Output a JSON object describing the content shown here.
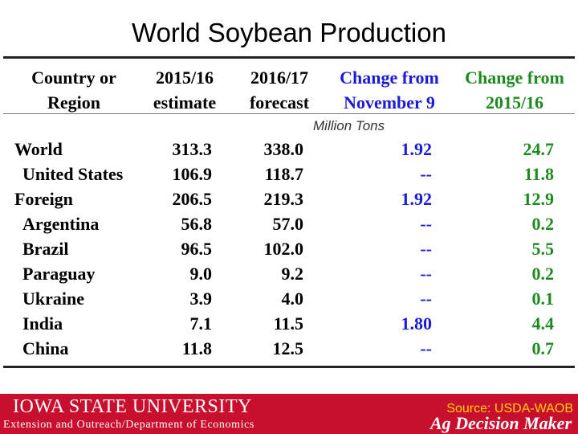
{
  "slide": {
    "title": "World Soybean Production"
  },
  "table": {
    "headers": {
      "col1": [
        "Country or",
        "Region"
      ],
      "col2": [
        "2015/16",
        "estimate"
      ],
      "col3": [
        "2016/17",
        "forecast"
      ],
      "col4": [
        "Change from",
        "November 9"
      ],
      "col5": [
        "Change from",
        "2015/16"
      ]
    },
    "units": "Million Tons",
    "rows": [
      {
        "name": "World",
        "v2015": "313.3",
        "v2016": "338.0",
        "chg_nov": "1.92",
        "chg_prev": "24.7"
      },
      {
        "name": "United States",
        "v2015": "106.9",
        "v2016": "118.7",
        "chg_nov": "--",
        "chg_prev": "11.8"
      },
      {
        "name": "Foreign",
        "v2015": "206.5",
        "v2016": "219.3",
        "chg_nov": "1.92",
        "chg_prev": "12.9"
      },
      {
        "name": "Argentina",
        "v2015": "56.8",
        "v2016": "57.0",
        "chg_nov": "--",
        "chg_prev": "0.2"
      },
      {
        "name": "Brazil",
        "v2015": "96.5",
        "v2016": "102.0",
        "chg_nov": "--",
        "chg_prev": "5.5"
      },
      {
        "name": "Paraguay",
        "v2015": "9.0",
        "v2016": "9.2",
        "chg_nov": "--",
        "chg_prev": "0.2"
      },
      {
        "name": "Ukraine",
        "v2015": "3.9",
        "v2016": "4.0",
        "chg_nov": "--",
        "chg_prev": "0.1"
      },
      {
        "name": "India",
        "v2015": "7.1",
        "v2016": "11.5",
        "chg_nov": "1.80",
        "chg_prev": "4.4"
      },
      {
        "name": "China",
        "v2015": "11.8",
        "v2016": "12.5",
        "chg_nov": "--",
        "chg_prev": "0.7"
      }
    ]
  },
  "footer": {
    "logo_text": "IOWA STATE UNIVERSITY",
    "dept": "Extension and Outreach/Department of Economics",
    "source": "Source: USDA-WAOB",
    "brand": "Ag Decision Maker",
    "colors": {
      "bar": "#c8102e",
      "source": "#ffd200"
    }
  }
}
